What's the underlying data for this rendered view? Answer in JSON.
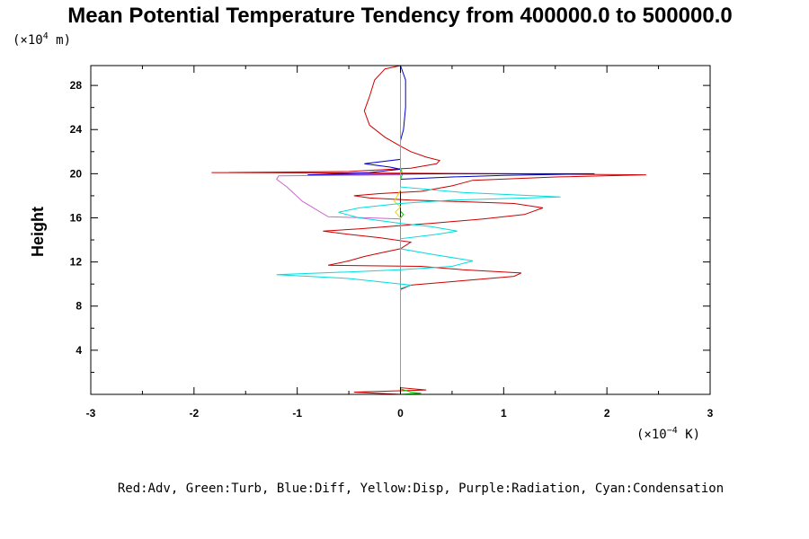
{
  "chart_data": {
    "type": "line",
    "title": "Mean Potential Temperature Tendency from 400000.0 to 500000.0",
    "ylabel": "Height",
    "y_unit": "(×10",
    "y_unit_exp": "4",
    "y_unit_tail": " m)",
    "x_unit": "(×10",
    "x_unit_exp": "−4",
    "x_unit_tail": " K)",
    "legend_text": "Red:Adv, Green:Turb, Blue:Diff, Yellow:Disp, Purple:Radiation, Cyan:Condensation",
    "xlim": [
      -3,
      3
    ],
    "ylim": [
      0,
      29.8
    ],
    "x_ticks": [
      "-3",
      "-2",
      "-1",
      "0",
      "1",
      "2",
      "3"
    ],
    "x_tick_values": [
      -3,
      -2,
      -1,
      0,
      1,
      2,
      3
    ],
    "y_ticks": [
      "4",
      "8",
      "12",
      "16",
      "20",
      "24",
      "28"
    ],
    "y_tick_values": [
      4,
      8,
      12,
      16,
      20,
      24,
      28
    ],
    "series": [
      {
        "name": "Adv",
        "color": "#cc0000",
        "points": [
          [
            0.0,
            0.0
          ],
          [
            -0.45,
            0.2
          ],
          [
            0.25,
            0.4
          ],
          [
            0.0,
            0.6
          ],
          [
            0.0,
            9.5
          ],
          [
            0.1,
            9.9
          ],
          [
            0.6,
            10.3
          ],
          [
            1.1,
            10.7
          ],
          [
            1.17,
            11.0
          ],
          [
            0.6,
            11.3
          ],
          [
            0.2,
            11.6
          ],
          [
            -0.7,
            11.7
          ],
          [
            -0.5,
            12.1
          ],
          [
            -0.35,
            12.5
          ],
          [
            -0.2,
            12.8
          ],
          [
            0.0,
            13.2
          ],
          [
            0.1,
            13.8
          ],
          [
            -0.2,
            14.2
          ],
          [
            -0.5,
            14.5
          ],
          [
            -0.75,
            14.8
          ],
          [
            -0.4,
            15.0
          ],
          [
            0.0,
            15.3
          ],
          [
            0.3,
            15.5
          ],
          [
            0.8,
            15.9
          ],
          [
            1.2,
            16.3
          ],
          [
            1.38,
            16.9
          ],
          [
            1.1,
            17.3
          ],
          [
            0.5,
            17.5
          ],
          [
            0.1,
            17.6
          ],
          [
            -0.3,
            17.8
          ],
          [
            -0.45,
            18.0
          ],
          [
            -0.2,
            18.2
          ],
          [
            0.2,
            18.4
          ],
          [
            0.5,
            18.9
          ],
          [
            0.7,
            19.4
          ],
          [
            1.5,
            19.7
          ],
          [
            2.38,
            19.9
          ],
          [
            1.0,
            20.0
          ],
          [
            0.0,
            20.05
          ],
          [
            -1.83,
            20.1
          ],
          [
            -0.5,
            20.2
          ],
          [
            0.1,
            20.5
          ],
          [
            0.35,
            20.9
          ],
          [
            0.38,
            21.2
          ],
          [
            0.25,
            21.5
          ],
          [
            0.1,
            22.0
          ],
          [
            0.0,
            22.5
          ],
          [
            -0.15,
            23.3
          ],
          [
            -0.3,
            24.4
          ],
          [
            -0.35,
            25.7
          ],
          [
            -0.3,
            27.0
          ],
          [
            -0.25,
            28.5
          ],
          [
            -0.15,
            29.5
          ],
          [
            0.0,
            29.8
          ]
        ]
      },
      {
        "name": "Turb",
        "color": "#00cc00",
        "points": [
          [
            0.0,
            0.0
          ],
          [
            0.2,
            0.1
          ],
          [
            0.1,
            0.2
          ],
          [
            0.0,
            0.5
          ],
          [
            0.0,
            16.0
          ],
          [
            0.03,
            16.3
          ],
          [
            0.0,
            16.6
          ],
          [
            0.0,
            19.5
          ],
          [
            0.02,
            20.0
          ],
          [
            0.0,
            20.5
          ],
          [
            0.0,
            29.8
          ]
        ]
      },
      {
        "name": "Diff",
        "color": "#0000cc",
        "points": [
          [
            0.0,
            0.0
          ],
          [
            0.0,
            19.5
          ],
          [
            0.5,
            19.7
          ],
          [
            1.0,
            19.85
          ],
          [
            1.88,
            20.0
          ],
          [
            0.5,
            20.0
          ],
          [
            -0.9,
            19.9
          ],
          [
            -0.3,
            20.1
          ],
          [
            0.0,
            20.4
          ],
          [
            -0.1,
            20.6
          ],
          [
            -0.35,
            20.9
          ],
          [
            0.0,
            21.3
          ],
          [
            0.0,
            23.0
          ],
          [
            0.03,
            24.0
          ],
          [
            0.05,
            26.0
          ],
          [
            0.05,
            28.5
          ],
          [
            0.0,
            29.8
          ]
        ]
      },
      {
        "name": "Disp",
        "color": "#dddd00",
        "points": [
          [
            0.0,
            0.0
          ],
          [
            0.0,
            16.0
          ],
          [
            -0.05,
            16.5
          ],
          [
            0.0,
            17.0
          ],
          [
            -0.06,
            17.5
          ],
          [
            0.0,
            18.5
          ],
          [
            0.0,
            29.8
          ]
        ]
      },
      {
        "name": "Radiation",
        "color": "#cc66cc",
        "points": [
          [
            0.0,
            0.0
          ],
          [
            0.0,
            15.9
          ],
          [
            -0.3,
            16.0
          ],
          [
            -0.7,
            16.1
          ],
          [
            -0.95,
            17.5
          ],
          [
            -1.1,
            18.8
          ],
          [
            -1.2,
            19.5
          ],
          [
            -1.18,
            19.8
          ],
          [
            0.0,
            19.9
          ],
          [
            0.0,
            29.8
          ]
        ]
      },
      {
        "name": "Condensation",
        "color": "#00dddd",
        "points": [
          [
            0.0,
            0.0
          ],
          [
            0.0,
            9.6
          ],
          [
            0.1,
            9.9
          ],
          [
            -0.5,
            10.5
          ],
          [
            -1.2,
            10.85
          ],
          [
            -0.5,
            11.1
          ],
          [
            0.0,
            11.3
          ],
          [
            0.5,
            11.6
          ],
          [
            0.7,
            12.1
          ],
          [
            0.3,
            12.7
          ],
          [
            0.0,
            13.2
          ],
          [
            0.0,
            14.1
          ],
          [
            0.35,
            14.5
          ],
          [
            0.55,
            14.8
          ],
          [
            0.3,
            15.2
          ],
          [
            0.0,
            15.5
          ],
          [
            -0.4,
            16.0
          ],
          [
            -0.6,
            16.5
          ],
          [
            -0.4,
            16.9
          ],
          [
            0.0,
            17.3
          ],
          [
            0.5,
            17.6
          ],
          [
            1.55,
            17.9
          ],
          [
            0.6,
            18.3
          ],
          [
            0.0,
            18.8
          ],
          [
            0.0,
            29.8
          ]
        ]
      }
    ]
  }
}
